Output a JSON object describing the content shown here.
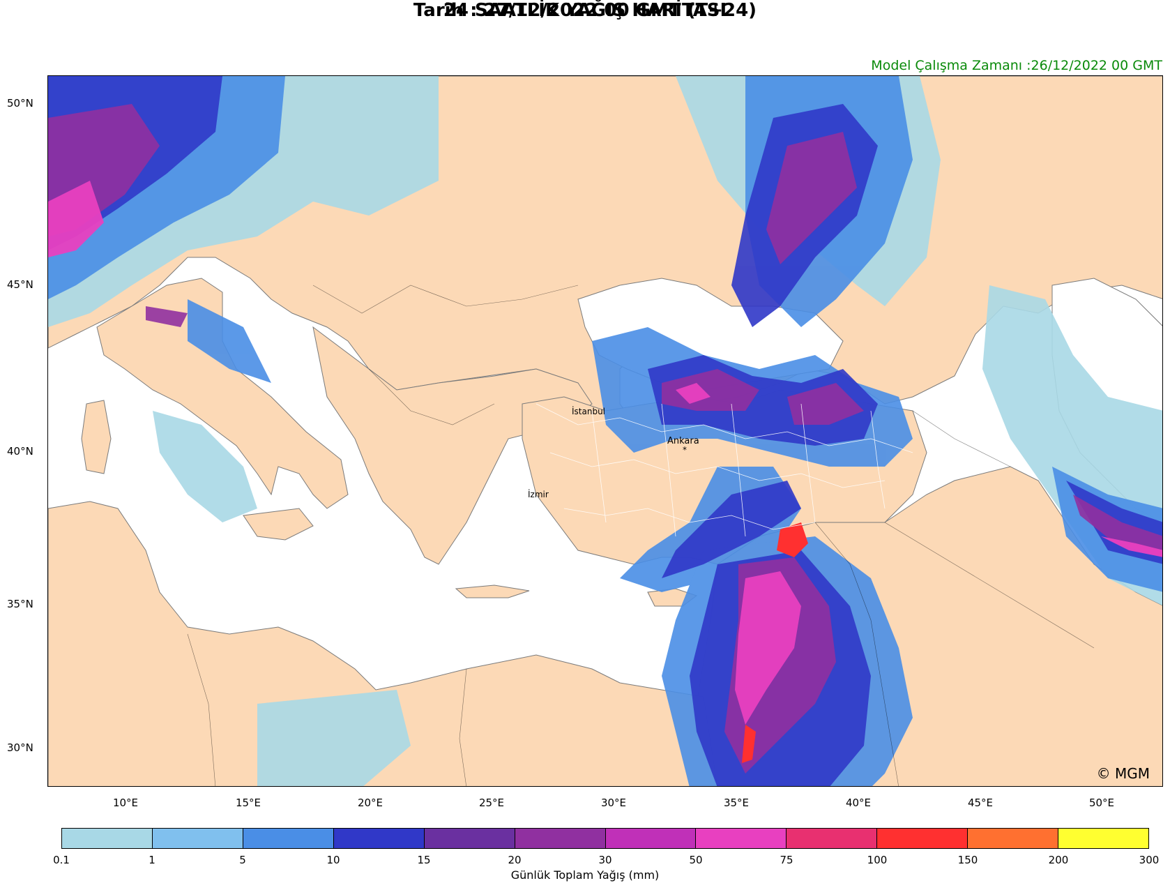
{
  "title": "24 SAATLİK YAĞIŞ HARİTASI",
  "subtitle": "Tarih : 27/12/2022  00 GMT (T+24)",
  "model_run": "Model Çalışma Zamanı :26/12/2022  00 GMT",
  "copyright": "© MGM",
  "lat_labels": [
    "50°N",
    "45°N",
    "40°N",
    "35°N",
    "30°N"
  ],
  "lon_labels": [
    "10°E",
    "15°E",
    "20°E",
    "25°E",
    "30°E",
    "35°E",
    "40°E",
    "45°E",
    "50°E"
  ],
  "cities": {
    "istanbul": "İstanbul",
    "ankara": "Ankara",
    "izmir": "İzmir"
  },
  "colorbar": {
    "label": "Günlük Toplam Yağış (mm)",
    "ticks": [
      "0.1",
      "1",
      "5",
      "10",
      "15",
      "20",
      "30",
      "50",
      "75",
      "100",
      "150",
      "200",
      "300"
    ],
    "colors": [
      "#a8d8e6",
      "#80c0ee",
      "#4a8ee6",
      "#3038c8",
      "#6a30a0",
      "#9030a0",
      "#c030b8",
      "#e840c0",
      "#e83070",
      "#ff3030",
      "#ff7030",
      "#ffff30"
    ]
  },
  "colors": {
    "land": "#fcd9b6",
    "sea": "#ffffff",
    "border": "#000000",
    "coast": "#7a7a7a"
  }
}
